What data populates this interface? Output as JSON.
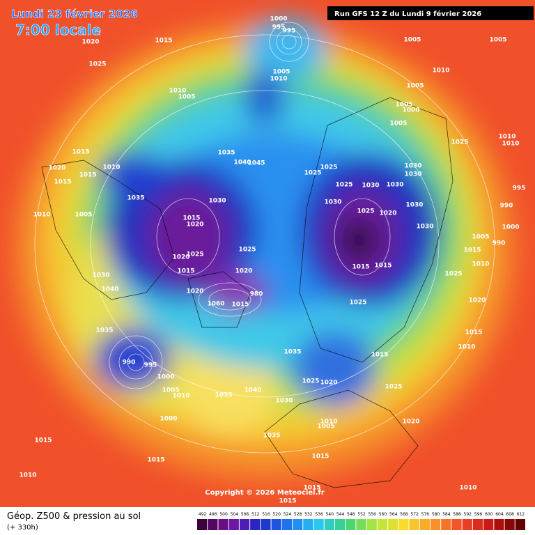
{
  "header": {
    "date": "Lundi 23 février 2026",
    "time": "7:00 locale",
    "run": "Run GFS 12 Z du Lundi 9 février 2026"
  },
  "copyright": "Copyright © 2026 Meteociel.fr",
  "footer": {
    "title": "Géop. Z500 & pression au sol",
    "subtitle": "(+ 330h)"
  },
  "scale": [
    492,
    496,
    500,
    504,
    508,
    512,
    516,
    520,
    524,
    528,
    532,
    536,
    540,
    544,
    548,
    552,
    556,
    560,
    564,
    568,
    572,
    576,
    580,
    584,
    588,
    592,
    596,
    600,
    604,
    608,
    612
  ],
  "pressure_labels": [
    1005,
    1005,
    1010,
    1005,
    1000,
    1005,
    1005,
    1025,
    1010,
    1010,
    995,
    990,
    1000,
    1005,
    990,
    1015,
    1010,
    1025,
    1020,
    1015,
    1010,
    1030,
    1030,
    1030,
    1030,
    1020,
    1025,
    1030,
    1030,
    1025,
    1025,
    1025,
    1030,
    1015,
    1015,
    1025,
    1015,
    1025,
    1020,
    1025,
    1020,
    1030,
    1035,
    1010,
    1005,
    1015,
    1035,
    1010,
    1015,
    1015,
    1040,
    1035,
    1015,
    1015,
    1010,
    1000,
    1005,
    1010,
    1000,
    990,
    995,
    1035,
    1040,
    1030,
    1010,
    1005,
    1015,
    1020,
    1015,
    1015,
    1010,
    1035,
    1015,
    1020,
    1020,
    1025,
    1015,
    1020,
    1060,
    1015,
    1020,
    1025,
    1030,
    1035,
    1040,
    1045,
    1005,
    1010,
    1000,
    995,
    995,
    1010,
    1005,
    1015,
    1020,
    1025,
    980
  ]
}
